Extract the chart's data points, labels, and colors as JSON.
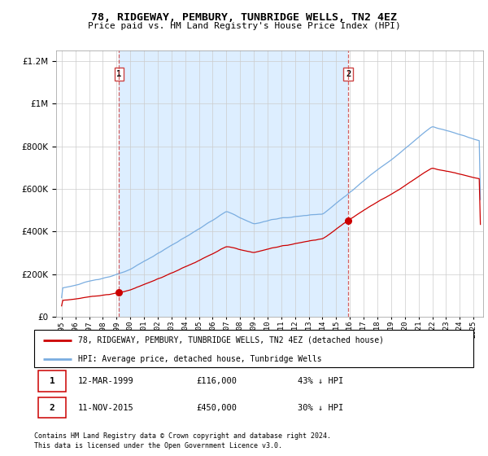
{
  "title": "78, RIDGEWAY, PEMBURY, TUNBRIDGE WELLS, TN2 4EZ",
  "subtitle": "Price paid vs. HM Land Registry's House Price Index (HPI)",
  "sale1_date_num": 1999.19,
  "sale1_price": 116000,
  "sale1_label": "1",
  "sale1_date_str": "12-MAR-1999",
  "sale1_pct": "43% ↓ HPI",
  "sale2_date_num": 2015.87,
  "sale2_price": 450000,
  "sale2_label": "2",
  "sale2_date_str": "11-NOV-2015",
  "sale2_pct": "30% ↓ HPI",
  "hpi_legend": "HPI: Average price, detached house, Tunbridge Wells",
  "prop_legend": "78, RIDGEWAY, PEMBURY, TUNBRIDGE WELLS, TN2 4EZ (detached house)",
  "footer1": "Contains HM Land Registry data © Crown copyright and database right 2024.",
  "footer2": "This data is licensed under the Open Government Licence v3.0.",
  "ylim_max": 1250000,
  "red_color": "#cc0000",
  "blue_color": "#7aade0",
  "shade_color": "#ddeeff",
  "dashed_color": "#cc4444"
}
